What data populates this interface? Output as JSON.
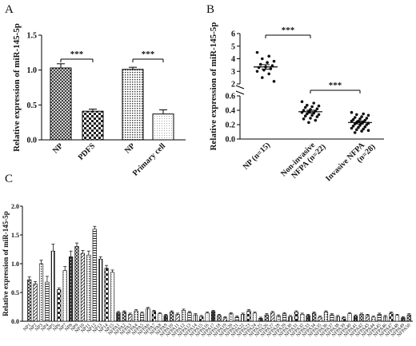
{
  "chart_data": [
    {
      "panel": "A",
      "type": "bar",
      "ylabel": "Relative expression of miR-145-5p",
      "categories": [
        "NP",
        "PDFS",
        "NP",
        "Primary cell"
      ],
      "values": [
        1.03,
        0.41,
        1.01,
        0.37
      ],
      "errors": [
        0.06,
        0.03,
        0.03,
        0.06
      ],
      "fills": [
        "crosshatch",
        "checker",
        "dots",
        "fine"
      ],
      "ylim": [
        0,
        1.5
      ],
      "yticks": [
        "0.0",
        "0.5",
        "1.0",
        "1.5"
      ],
      "significance": [
        {
          "between": [
            0,
            1
          ],
          "label": "***"
        },
        {
          "between": [
            2,
            3
          ],
          "label": "***"
        }
      ]
    },
    {
      "panel": "B",
      "type": "scatter",
      "ylabel": "Relative expression of miR-145-5p",
      "categories": [
        "NP (n=15)",
        "Non-invasive NFPA (n=22)",
        "Invasive NFPA (n=28)"
      ],
      "lower_ylim": [
        0,
        0.6
      ],
      "lower_yticks": [
        "0.0",
        "0.2",
        "0.4",
        "0.6"
      ],
      "upper_ylim": [
        2,
        6
      ],
      "upper_yticks": [
        "2",
        "3",
        "4",
        "5",
        "6"
      ],
      "means": [
        3.35,
        0.38,
        0.23
      ],
      "sem": [
        0.18,
        0.02,
        0.02
      ],
      "series": [
        {
          "values": [
            4.5,
            4.2,
            4.0,
            3.8,
            3.7,
            3.55,
            3.45,
            3.35,
            3.3,
            3.2,
            3.1,
            3.0,
            2.8,
            2.5,
            2.2
          ]
        },
        {
          "values": [
            0.52,
            0.5,
            0.47,
            0.46,
            0.45,
            0.44,
            0.42,
            0.41,
            0.4,
            0.39,
            0.38,
            0.37,
            0.36,
            0.35,
            0.34,
            0.33,
            0.32,
            0.31,
            0.29,
            0.28,
            0.26,
            0.23
          ]
        },
        {
          "values": [
            0.37,
            0.35,
            0.34,
            0.33,
            0.31,
            0.3,
            0.29,
            0.28,
            0.27,
            0.26,
            0.25,
            0.25,
            0.24,
            0.23,
            0.22,
            0.22,
            0.21,
            0.2,
            0.19,
            0.18,
            0.17,
            0.16,
            0.15,
            0.14,
            0.13,
            0.12,
            0.11,
            0.09
          ]
        }
      ],
      "significance": [
        {
          "between": [
            0,
            1
          ],
          "label": "***"
        },
        {
          "between": [
            1,
            2
          ],
          "label": "***"
        }
      ]
    },
    {
      "panel": "C",
      "type": "bar",
      "ylabel": "Relative expression of miR-145-5p",
      "categories": [
        "NP1",
        "NP2",
        "NP3",
        "NP4",
        "NP5",
        "NP6",
        "NP7",
        "NP8",
        "NP9",
        "NP10",
        "NP11",
        "NP12",
        "NP13",
        "NP14",
        "NP15",
        "NFPA1",
        "NFPA2",
        "NFPA3",
        "NFPA4",
        "NFPA5",
        "NFPA6",
        "NFPA7",
        "NFPA8",
        "NFPA9",
        "NFPA10",
        "NFPA11",
        "NFPA12",
        "NFPA13",
        "NFPA14",
        "NFPA15",
        "NFPA16",
        "NFPA17",
        "NFPA18",
        "NFPA19",
        "NFPA20",
        "NFPA21",
        "NFPA22",
        "NFPA23",
        "NFPA24",
        "NFPA25",
        "NFPA26",
        "NFPA27",
        "NFPA28",
        "NFPA29",
        "NFPA30",
        "NFPA31",
        "NFPA32",
        "NFPA33",
        "NFPA34",
        "NFPA35",
        "NFPA36",
        "NFPA37",
        "NFPA38",
        "NFPA39",
        "NFPA40",
        "NFPA41",
        "NFPA42",
        "NFPA43",
        "NFPA44",
        "NFPA45",
        "NFPA46",
        "NFPA47",
        "NFPA48",
        "NFPA49",
        "NFPA50"
      ],
      "values": [
        0.72,
        0.65,
        1.0,
        0.68,
        1.22,
        0.55,
        0.88,
        1.12,
        1.3,
        1.18,
        1.15,
        1.6,
        1.08,
        0.92,
        0.85,
        0.15,
        0.16,
        0.12,
        0.18,
        0.14,
        0.22,
        0.17,
        0.13,
        0.1,
        0.16,
        0.12,
        0.19,
        0.15,
        0.11,
        0.08,
        0.14,
        0.17,
        0.1,
        0.06,
        0.13,
        0.07,
        0.12,
        0.18,
        0.14,
        0.05,
        0.11,
        0.15,
        0.09,
        0.13,
        0.08,
        0.16,
        0.12,
        0.1,
        0.14,
        0.07,
        0.16,
        0.11,
        0.08,
        0.06,
        0.13,
        0.09,
        0.12,
        0.1,
        0.07,
        0.12,
        0.08,
        0.14,
        0.1,
        0.06,
        0.11
      ],
      "errors": [
        0.05,
        0.04,
        0.06,
        0.1,
        0.12,
        0.03,
        0.07,
        0.1,
        0.06,
        0.05,
        0.07,
        0.05,
        0.04,
        0.05,
        0.04,
        0.02,
        0.02,
        0.02,
        0.02,
        0.02,
        0.02,
        0.02,
        0.02,
        0.02,
        0.02,
        0.02,
        0.02,
        0.02,
        0.02,
        0.02,
        0.02,
        0.02,
        0.02,
        0.02,
        0.02,
        0.02,
        0.02,
        0.02,
        0.02,
        0.02,
        0.02,
        0.02,
        0.02,
        0.02,
        0.02,
        0.02,
        0.02,
        0.02,
        0.02,
        0.02,
        0.02,
        0.02,
        0.02,
        0.02,
        0.02,
        0.02,
        0.02,
        0.02,
        0.02,
        0.02,
        0.02,
        0.02,
        0.02,
        0.02,
        0.02
      ],
      "ylim": [
        0,
        2.0
      ],
      "yticks": [
        "0.0",
        "0.5",
        "1.0",
        "1.5",
        "2.0"
      ]
    }
  ],
  "labels": {
    "panel_a": "A",
    "panel_b": "B",
    "panel_c": "C"
  }
}
